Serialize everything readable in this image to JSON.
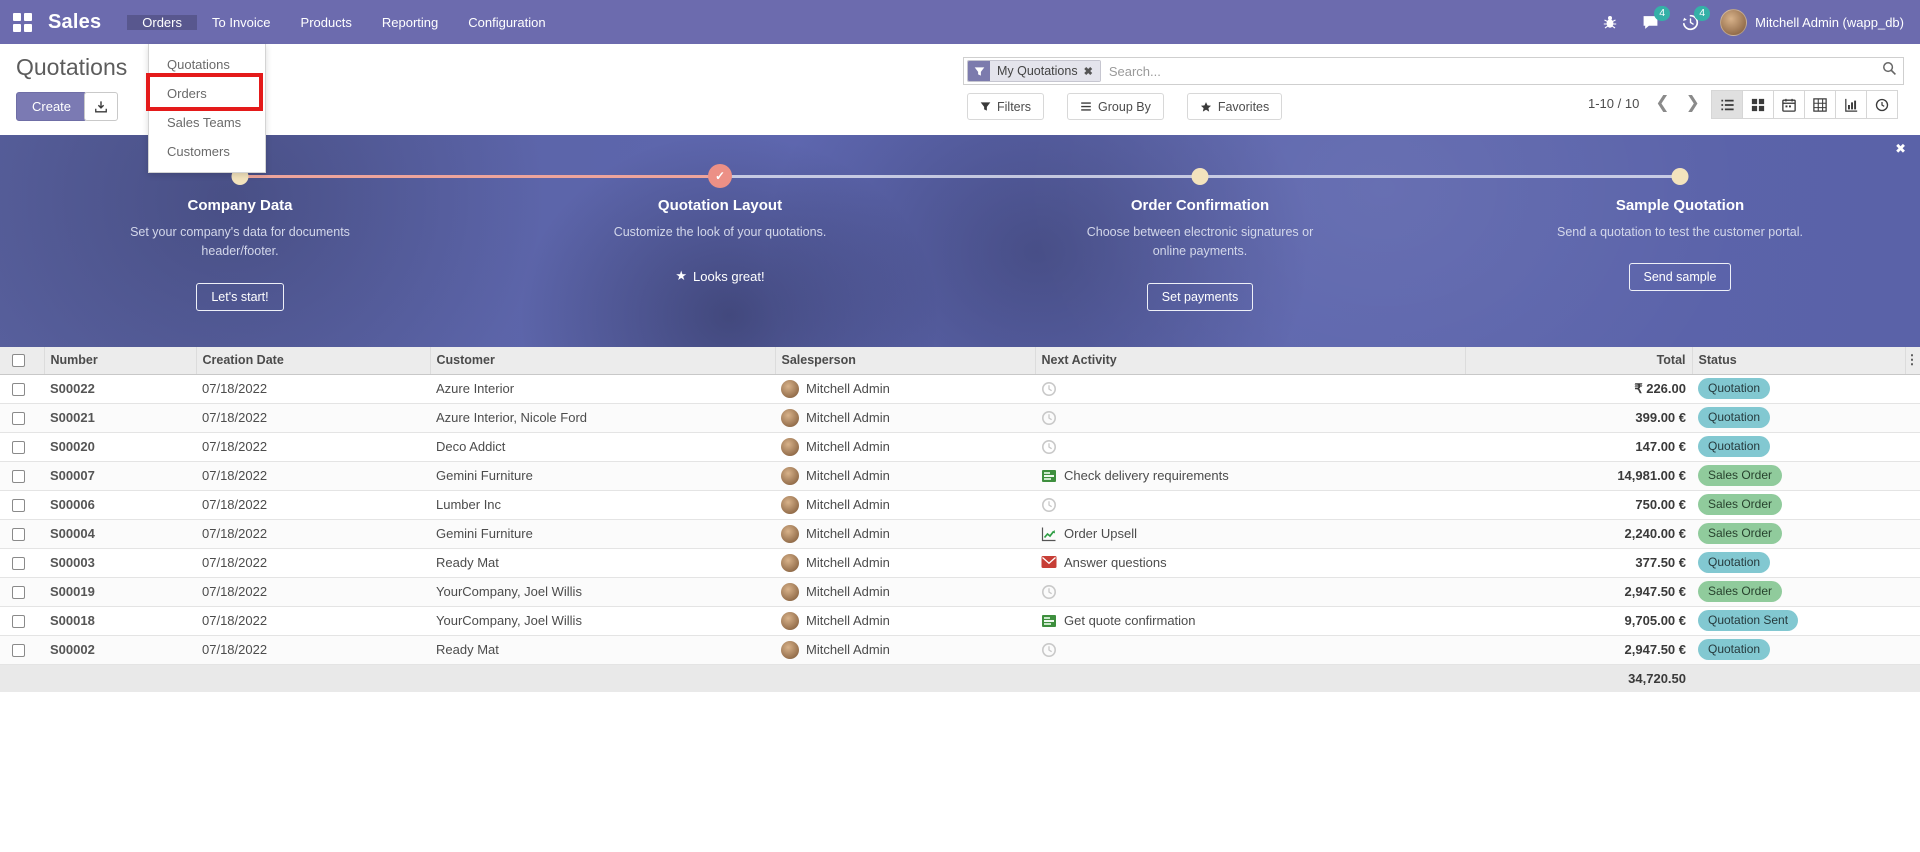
{
  "navbar": {
    "app_name": "Sales",
    "menus": [
      {
        "label": "Orders"
      },
      {
        "label": "To Invoice"
      },
      {
        "label": "Products"
      },
      {
        "label": "Reporting"
      },
      {
        "label": "Configuration"
      }
    ],
    "systray": {
      "message_count": "4",
      "activity_count": "4",
      "user_name": "Mitchell Admin (wapp_db)"
    }
  },
  "orders_dropdown": {
    "items": [
      {
        "label": "Quotations"
      },
      {
        "label": "Orders"
      },
      {
        "label": "Sales Teams"
      },
      {
        "label": "Customers"
      }
    ]
  },
  "control_panel": {
    "title": "Quotations",
    "create_label": "Create",
    "search": {
      "filter_tag": "My Quotations",
      "placeholder": "Search..."
    },
    "filters_label": "Filters",
    "group_by_label": "Group By",
    "favorites_label": "Favorites",
    "pager_text": "1-10 / 10"
  },
  "onboarding": {
    "steps": [
      {
        "title": "Company Data",
        "description": "Set your company's data for documents header/footer.",
        "button": "Let's start!",
        "state": "todo"
      },
      {
        "title": "Quotation Layout",
        "description": "Customize the look of your quotations.",
        "button": "Looks great!",
        "state": "done"
      },
      {
        "title": "Order Confirmation",
        "description": "Choose between electronic signatures or online payments.",
        "button": "Set payments",
        "state": "todo"
      },
      {
        "title": "Sample Quotation",
        "description": "Send a quotation to test the customer portal.",
        "button": "Send sample",
        "state": "todo"
      }
    ]
  },
  "table": {
    "headers": {
      "number": "Number",
      "creation_date": "Creation Date",
      "customer": "Customer",
      "salesperson": "Salesperson",
      "next_activity": "Next Activity",
      "total": "Total",
      "status": "Status"
    },
    "rows": [
      {
        "number": "S00022",
        "date": "07/18/2022",
        "customer": "Azure Interior",
        "salesperson": "Mitchell Admin",
        "activity_icon": "clock",
        "activity_label": "",
        "total": "₹ 226.00",
        "status": "Quotation",
        "status_color": "info"
      },
      {
        "number": "S00021",
        "date": "07/18/2022",
        "customer": "Azure Interior, Nicole Ford",
        "salesperson": "Mitchell Admin",
        "activity_icon": "clock",
        "activity_label": "",
        "total": "399.00 €",
        "status": "Quotation",
        "status_color": "info"
      },
      {
        "number": "S00020",
        "date": "07/18/2022",
        "customer": "Deco Addict",
        "salesperson": "Mitchell Admin",
        "activity_icon": "clock",
        "activity_label": "",
        "total": "147.00 €",
        "status": "Quotation",
        "status_color": "info"
      },
      {
        "number": "S00007",
        "date": "07/18/2022",
        "customer": "Gemini Furniture",
        "salesperson": "Mitchell Admin",
        "activity_icon": "tasks",
        "activity_label": "Check delivery requirements",
        "total": "14,981.00 €",
        "status": "Sales Order",
        "status_color": "success"
      },
      {
        "number": "S00006",
        "date": "07/18/2022",
        "customer": "Lumber Inc",
        "salesperson": "Mitchell Admin",
        "activity_icon": "clock",
        "activity_label": "",
        "total": "750.00 €",
        "status": "Sales Order",
        "status_color": "success"
      },
      {
        "number": "S00004",
        "date": "07/18/2022",
        "customer": "Gemini Furniture",
        "salesperson": "Mitchell Admin",
        "activity_icon": "chart",
        "activity_label": "Order Upsell",
        "total": "2,240.00 €",
        "status": "Sales Order",
        "status_color": "success"
      },
      {
        "number": "S00003",
        "date": "07/18/2022",
        "customer": "Ready Mat",
        "salesperson": "Mitchell Admin",
        "activity_icon": "envelope",
        "activity_label": "Answer questions",
        "total": "377.50 €",
        "status": "Quotation",
        "status_color": "info"
      },
      {
        "number": "S00019",
        "date": "07/18/2022",
        "customer": "YourCompany, Joel Willis",
        "salesperson": "Mitchell Admin",
        "activity_icon": "clock",
        "activity_label": "",
        "total": "2,947.50 €",
        "status": "Sales Order",
        "status_color": "success"
      },
      {
        "number": "S00018",
        "date": "07/18/2022",
        "customer": "YourCompany, Joel Willis",
        "salesperson": "Mitchell Admin",
        "activity_icon": "tasks",
        "activity_label": "Get quote confirmation",
        "total": "9,705.00 €",
        "status": "Quotation Sent",
        "status_color": "info"
      },
      {
        "number": "S00002",
        "date": "07/18/2022",
        "customer": "Ready Mat",
        "salesperson": "Mitchell Admin",
        "activity_icon": "clock",
        "activity_label": "",
        "total": "2,947.50 €",
        "status": "Quotation",
        "status_color": "info"
      }
    ],
    "footer_total": "34,720.50"
  },
  "colors": {
    "navbar": "#6c6bae",
    "accent": "#7b7ab3",
    "progress_done": "#eda49c",
    "step_dot": "#f3e3bd",
    "badge_info": "#82c8d1",
    "badge_success": "#90cb9c",
    "tray_badge": "#35b0a7",
    "annotation_red": "#e41a1a"
  }
}
